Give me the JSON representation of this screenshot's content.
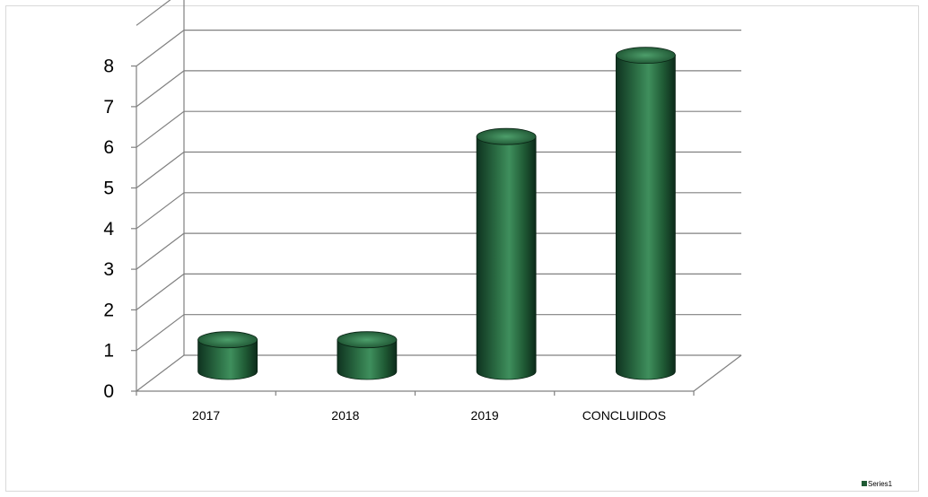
{
  "chart_data": {
    "type": "bar",
    "style": "3d-cylinder",
    "categories": [
      "2017",
      "2018",
      "2019",
      "CONCLUIDOS"
    ],
    "series": [
      {
        "name": "Series1",
        "values": [
          1,
          1,
          6,
          8
        ]
      }
    ],
    "ylim": [
      0,
      8
    ],
    "yticks": [
      0,
      1,
      2,
      3,
      4,
      5,
      6,
      7,
      8
    ],
    "grid": true,
    "legend": "right",
    "colors": {
      "bar": "#1f5a34",
      "bar_light": "#3f8f5d",
      "bar_dark": "#0f3320",
      "grid": "#808080",
      "legend_swatch": "#1f5a34"
    }
  }
}
